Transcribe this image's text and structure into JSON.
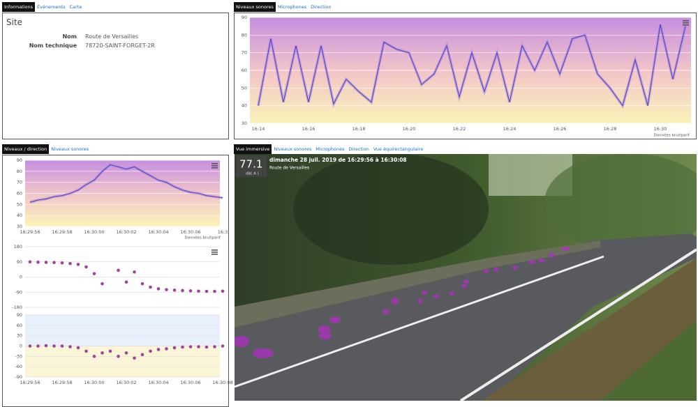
{
  "info_panel": {
    "tabs": [
      "Informations",
      "Événements",
      "Carte"
    ],
    "title": "Site",
    "fields": [
      {
        "label": "Nom",
        "value": "Route de Versailles"
      },
      {
        "label": "Nom technique",
        "value": "78720-SAINT-FORGET-2R"
      }
    ]
  },
  "levels_panel": {
    "tabs": [
      "Niveaux sonores",
      "Microphones",
      "Direction"
    ]
  },
  "direction_panel": {
    "tabs": [
      "Niveaux / direction",
      "Niveaux sonores"
    ]
  },
  "immersive_panel": {
    "tabs": [
      "Vue immersive",
      "Niveaux sonores",
      "Microphones",
      "Direction",
      "Vue équirectangulaire"
    ],
    "level": "77.1",
    "unit": "dB( A )",
    "period": "dimanche 28 juil. 2019 de 16:29:56 à 16:30:08",
    "site": "Route de Versailles"
  },
  "chart_data": [
    {
      "type": "line",
      "color": "#5a3fc8",
      "credit": "Données bruitparif",
      "categories": [
        "16:14",
        null,
        null,
        null,
        "16:16",
        null,
        null,
        null,
        "16:18",
        null,
        null,
        null,
        "16:20",
        null,
        null,
        null,
        "16:22",
        null,
        null,
        null,
        "16:24",
        null,
        null,
        null,
        "16:26",
        null,
        null,
        null,
        "16:28",
        null,
        null,
        null,
        "16:30",
        null,
        null
      ],
      "values": [
        40,
        78,
        42,
        74,
        42,
        74,
        41,
        55,
        48,
        42,
        76,
        72,
        70,
        52,
        58,
        74,
        45,
        70,
        48,
        70,
        42,
        74,
        60,
        76,
        58,
        78,
        80,
        58,
        50,
        40,
        66,
        40,
        86,
        55,
        85
      ],
      "ylim": [
        30,
        90
      ],
      "yticks": [
        30,
        40,
        50,
        60,
        70,
        80,
        90
      ]
    },
    {
      "type": "line",
      "color": "#5a3fc8",
      "credit": "Données bruitparif",
      "categories": [
        "16:29:56",
        null,
        null,
        null,
        "16:29:58",
        null,
        null,
        null,
        "16:30:00",
        null,
        null,
        null,
        "16:30:02",
        null,
        null,
        null,
        "16:30:04",
        null,
        null,
        null,
        "16:30:06",
        null,
        null,
        null,
        "16:3"
      ],
      "values": [
        52,
        54,
        55,
        57,
        58,
        60,
        63,
        68,
        72,
        80,
        86,
        84,
        82,
        84,
        80,
        76,
        72,
        70,
        66,
        63,
        61,
        60,
        58,
        57,
        56
      ],
      "ylim": [
        30,
        90
      ],
      "yticks": [
        30,
        40,
        50,
        60,
        70,
        80,
        90
      ]
    },
    {
      "type": "scatter",
      "color": "#a0449a",
      "categories": [
        null,
        null,
        null,
        null,
        null,
        null,
        null,
        null,
        null,
        null,
        null,
        null,
        null,
        null,
        null,
        null,
        null,
        null,
        null,
        null,
        null,
        null,
        null,
        null,
        null
      ],
      "values": [
        90,
        88,
        87,
        86,
        84,
        80,
        75,
        60,
        20,
        -40,
        null,
        40,
        -30,
        30,
        -40,
        -60,
        -70,
        -75,
        -78,
        -80,
        -82,
        -84,
        -85,
        -85,
        -84
      ],
      "ylim": [
        -180,
        180
      ],
      "yticks": [
        180,
        90,
        0,
        -90,
        -180
      ]
    },
    {
      "type": "scatter",
      "color": "#a0449a",
      "categories": [
        "16:29:56",
        null,
        null,
        null,
        "16:29:58",
        null,
        null,
        null,
        "16:30:00",
        null,
        null,
        null,
        "16:30:02",
        null,
        null,
        null,
        "16:30:04",
        null,
        null,
        null,
        "16:30:06",
        null,
        null,
        null,
        "16:30:08"
      ],
      "values": [
        0,
        0,
        1,
        0,
        0,
        -2,
        -5,
        -15,
        -30,
        -20,
        -15,
        -30,
        -20,
        -35,
        -25,
        -15,
        -10,
        -8,
        -5,
        -3,
        -2,
        -2,
        -3,
        -2,
        0
      ],
      "ylim": [
        -90,
        90
      ],
      "yticks": [
        90,
        60,
        30,
        0,
        -30,
        -60,
        -90
      ]
    }
  ]
}
